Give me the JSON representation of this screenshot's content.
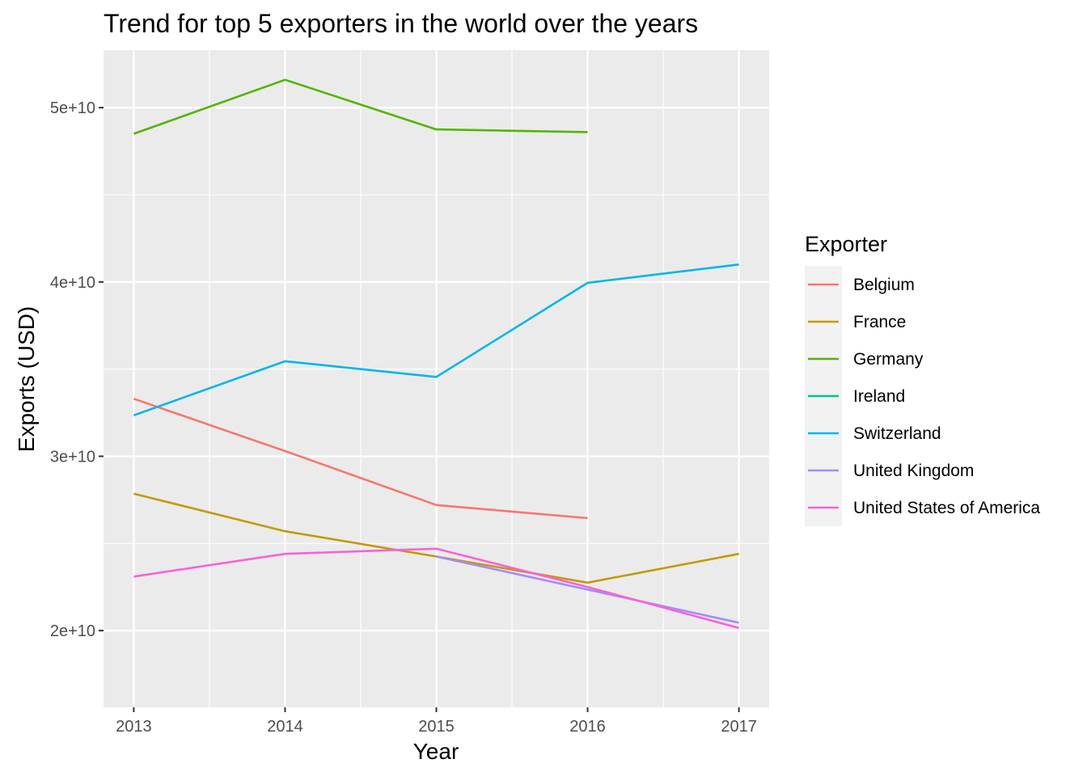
{
  "chart_data": {
    "type": "line",
    "title": "Trend for top 5 exporters in the world over the years",
    "xlabel": "Year",
    "ylabel": "Exports (USD)",
    "x": [
      2013,
      2014,
      2015,
      2016,
      2017
    ],
    "x_tick_labels": [
      "2013",
      "2014",
      "2015",
      "2016",
      "2017"
    ],
    "y_ticks": [
      20000000000,
      30000000000,
      40000000000,
      50000000000
    ],
    "y_tick_labels": [
      "2e+10",
      "3e+10",
      "4e+10",
      "5e+10"
    ],
    "xlim": [
      2012.8,
      2017.2
    ],
    "ylim": [
      15600000000,
      53300000000
    ],
    "grid": true,
    "legend": {
      "title": "Exporter",
      "position": "right"
    },
    "series": [
      {
        "name": "Belgium",
        "color": "#F8766D",
        "values": [
          33300000000,
          30300000000,
          27200000000,
          26450000000,
          null
        ]
      },
      {
        "name": "France",
        "color": "#C49A00",
        "values": [
          27850000000,
          25700000000,
          24250000000,
          22750000000,
          24400000000
        ]
      },
      {
        "name": "Germany",
        "color": "#53B400",
        "values": [
          48500000000,
          51600000000,
          48750000000,
          48600000000,
          null
        ]
      },
      {
        "name": "Ireland",
        "color": "#00C094",
        "values": [
          null,
          null,
          null,
          null,
          null
        ]
      },
      {
        "name": "Switzerland",
        "color": "#00B6EB",
        "values": [
          32350000000,
          35450000000,
          34550000000,
          39950000000,
          41000000000
        ]
      },
      {
        "name": "United Kingdom",
        "color": "#A58AFF",
        "values": [
          null,
          null,
          24250000000,
          22350000000,
          20450000000
        ]
      },
      {
        "name": "United States of America",
        "color": "#FB61D7",
        "values": [
          23100000000,
          24400000000,
          24700000000,
          22500000000,
          20150000000
        ]
      }
    ]
  }
}
